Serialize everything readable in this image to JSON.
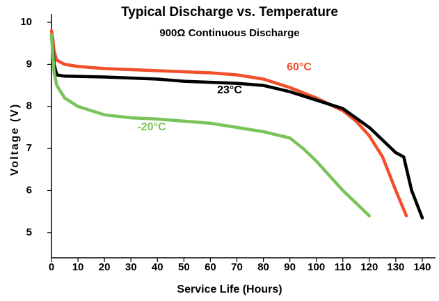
{
  "chart_data": {
    "type": "line",
    "title": "Typical Discharge vs. Temperature",
    "subtitle": "900Ω Continuous Discharge",
    "x_label": "Service Life (Hours)",
    "y_label": "Voltage (V)",
    "xlim": [
      0,
      145
    ],
    "ylim": [
      4.4,
      10.2
    ],
    "xticks": [
      0,
      10,
      20,
      30,
      40,
      50,
      60,
      70,
      80,
      90,
      100,
      110,
      120,
      130,
      140
    ],
    "yticks": [
      5,
      6,
      7,
      8,
      9,
      10
    ],
    "grid": false,
    "series": [
      {
        "name": "60°C",
        "color": "#f0502a",
        "x": [
          0,
          0.5,
          1,
          2,
          5,
          10,
          20,
          40,
          60,
          70,
          80,
          90,
          100,
          110,
          115,
          120,
          125,
          130,
          134
        ],
        "values": [
          9.8,
          9.6,
          9.3,
          9.1,
          9.0,
          8.95,
          8.9,
          8.85,
          8.8,
          8.75,
          8.65,
          8.45,
          8.2,
          7.9,
          7.65,
          7.3,
          6.8,
          6.0,
          5.4
        ]
      },
      {
        "name": "23°C",
        "color": "#000000",
        "x": [
          0,
          1,
          2,
          5,
          20,
          40,
          50,
          70,
          80,
          90,
          100,
          110,
          120,
          130,
          133,
          136,
          140
        ],
        "values": [
          9.7,
          9.0,
          8.75,
          8.72,
          8.7,
          8.65,
          8.6,
          8.55,
          8.5,
          8.35,
          8.15,
          7.95,
          7.5,
          6.9,
          6.8,
          6.0,
          5.35
        ]
      },
      {
        "name": "-20°C",
        "color": "#7ac35a",
        "x": [
          0,
          1,
          2,
          5,
          10,
          20,
          30,
          40,
          50,
          60,
          70,
          80,
          90,
          95,
          100,
          110,
          120
        ],
        "values": [
          9.7,
          8.8,
          8.5,
          8.2,
          8.0,
          7.8,
          7.73,
          7.7,
          7.65,
          7.6,
          7.5,
          7.4,
          7.25,
          7.0,
          6.7,
          6.0,
          5.4
        ]
      }
    ]
  }
}
